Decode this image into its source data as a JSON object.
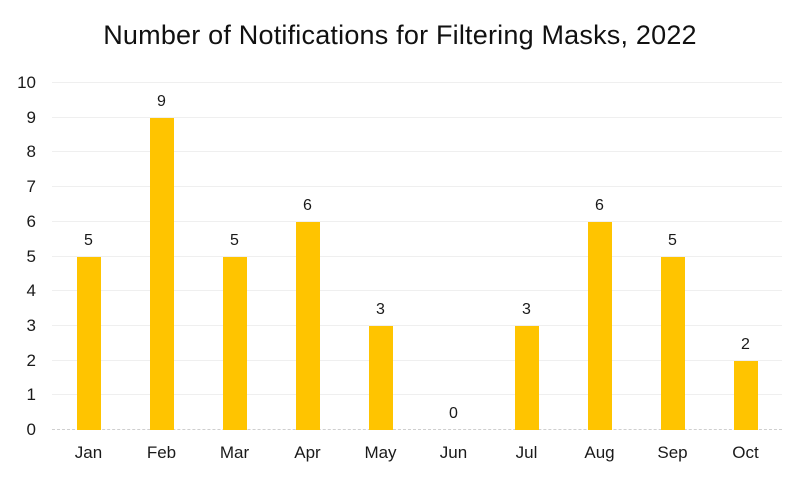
{
  "title": "Number of Notifications for Filtering Masks, 2022",
  "chart_data": {
    "type": "bar",
    "title": "Number of Notifications for Filtering Masks, 2022",
    "categories": [
      "Jan",
      "Feb",
      "Mar",
      "Apr",
      "May",
      "Jun",
      "Jul",
      "Aug",
      "Sep",
      "Oct"
    ],
    "values": [
      5,
      9,
      5,
      6,
      3,
      0,
      3,
      6,
      5,
      2
    ],
    "xlabel": "",
    "ylabel": "",
    "ylim": [
      0,
      10
    ],
    "ytick_step": 1,
    "ytick_labels": [
      "0",
      "1",
      "2",
      "3",
      "4",
      "5",
      "6",
      "7",
      "8",
      "9",
      "10"
    ],
    "data_labels": true,
    "grid": true,
    "legend_position": "none",
    "bar_color": "#FFC400",
    "gridline_color": "#EFEFEF",
    "axis_line_color": "#CFCFCF",
    "text_color": "#1a1a1a"
  }
}
